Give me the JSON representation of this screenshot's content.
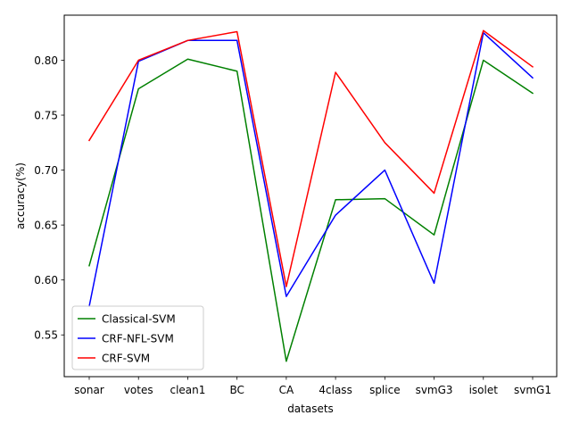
{
  "chart_data": {
    "type": "line",
    "title": "",
    "xlabel": "datasets",
    "ylabel": "accuracy(%)",
    "categories": [
      "sonar",
      "votes",
      "clean1",
      "BC",
      "CA",
      "4class",
      "splice",
      "svmG3",
      "isolet",
      "svmG1"
    ],
    "ylim": [
      0.512,
      0.841
    ],
    "yticks": [
      0.55,
      0.6,
      0.65,
      0.7,
      0.75,
      0.8
    ],
    "ytick_labels": [
      "0.55",
      "0.60",
      "0.65",
      "0.70",
      "0.75",
      "0.80"
    ],
    "grid": false,
    "legend_position": "lower-left",
    "series": [
      {
        "name": "Classical-SVM",
        "color": "#008000",
        "values": [
          0.613,
          0.774,
          0.801,
          0.79,
          0.526,
          0.673,
          0.674,
          0.641,
          0.8,
          0.77
        ]
      },
      {
        "name": "CRF-NFL-SVM",
        "color": "#0000ff",
        "values": [
          0.576,
          0.799,
          0.818,
          0.818,
          0.585,
          0.659,
          0.7,
          0.597,
          0.825,
          0.784
        ]
      },
      {
        "name": "CRF-SVM",
        "color": "#ff0000",
        "values": [
          0.727,
          0.8,
          0.818,
          0.826,
          0.594,
          0.789,
          0.725,
          0.679,
          0.827,
          0.794
        ]
      }
    ]
  }
}
